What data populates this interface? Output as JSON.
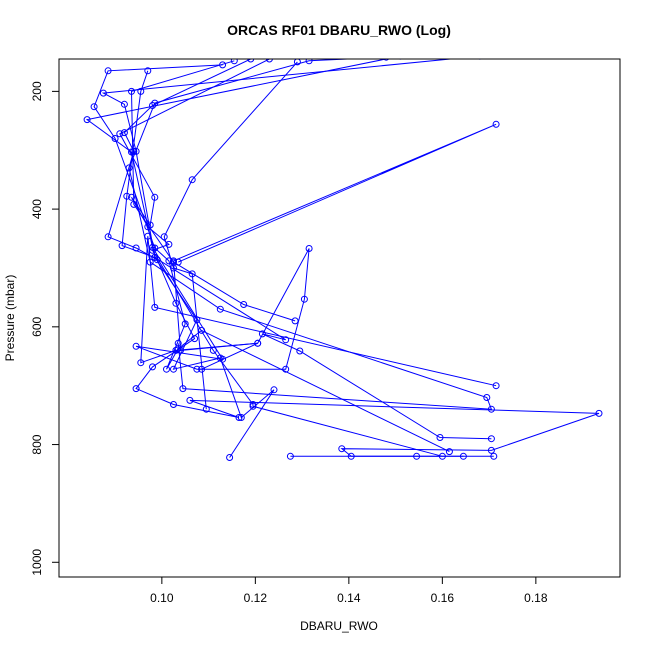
{
  "chart_data": {
    "type": "line",
    "title": "ORCAS RF01 DBARU_RWO (Log)",
    "xlabel": "DBARU_RWO",
    "ylabel": "Pressure (mbar)",
    "xlim": [
      0.078,
      0.198
    ],
    "ylim": [
      1025,
      145
    ],
    "y_reversed": true,
    "grid": false,
    "legend": "none",
    "line_color": "#0000ff",
    "marker": "open-circle",
    "x_ticks": [
      0.1,
      0.12,
      0.14,
      0.16,
      0.18
    ],
    "x_tick_labels": [
      "0.10",
      "0.12",
      "0.14",
      "0.16",
      "0.18"
    ],
    "y_ticks": [
      200,
      400,
      600,
      800,
      1000
    ],
    "y_tick_labels": [
      "200",
      "400",
      "600",
      "800",
      "1000"
    ],
    "series": [
      {
        "x": [
          0.119,
          0.098,
          0.092,
          0.094,
          0.0885,
          0.0945,
          0.099,
          0.103,
          0.107,
          0.098,
          0.0945,
          0.1025,
          0.1165,
          0.106,
          0.1935,
          0.1705,
          0.1385,
          0.1405,
          0.1645
        ],
        "y": [
          145,
          224,
          270,
          302,
          447,
          466,
          486,
          560,
          620,
          668,
          705,
          732,
          754,
          725,
          747,
          810,
          807,
          820,
          820
        ]
      },
      {
        "x": [
          0.113,
          0.0885,
          0.0855,
          0.09,
          0.0985,
          0.1015,
          0.105,
          0.101,
          0.1035,
          0.1085,
          0.1615
        ],
        "y": [
          155,
          165,
          226,
          280,
          466,
          488,
          595,
          672,
          637,
          606,
          812
        ]
      },
      {
        "x": [
          0.168,
          0.0875,
          0.092,
          0.0945,
          0.0985,
          0.1075,
          0.1025,
          0.1125,
          0.117,
          0.124,
          0.1145
        ],
        "y": [
          140,
          203,
          222,
          302,
          482,
          588,
          672,
          653,
          754,
          707,
          822
        ]
      },
      {
        "x": [
          0.151,
          0.084,
          0.0935,
          0.098,
          0.113,
          0.0945,
          0.1075,
          0.1265,
          0.1305,
          0.1315,
          0.1205,
          0.103,
          0.0955,
          0.097,
          0.0985,
          0.1715
        ],
        "y": [
          140,
          248,
          303,
          465,
          655,
          633,
          672,
          672,
          553,
          467,
          628,
          640,
          661,
          446,
          567,
          700
        ]
      },
      {
        "x": [
          0.123,
          0.091,
          0.0985,
          0.0975,
          0.0935,
          0.097,
          0.1015,
          0.098,
          0.111,
          0.1195,
          0.1195,
          0.16,
          0.171,
          0.1545,
          0.1275
        ],
        "y": [
          145,
          272,
          380,
          427,
          380,
          430,
          460,
          470,
          640,
          732,
          735,
          820,
          820,
          820,
          820
        ]
      },
      {
        "x": [
          0.097,
          0.0955,
          0.0925,
          0.0915,
          0.0985,
          0.1265,
          0.1215,
          0.1295,
          0.1595,
          0.1705
        ],
        "y": [
          165,
          200,
          378,
          462,
          482,
          622,
          612,
          641,
          788,
          790
        ]
      },
      {
        "x": [
          0.1155,
          0.0935,
          0.094,
          0.1025,
          0.1175,
          0.1285
        ],
        "y": [
          148,
          200,
          392,
          490,
          562,
          590
        ]
      },
      {
        "x": [
          0.148,
          0.1315,
          0.0985,
          0.093,
          0.0975,
          0.1125,
          0.1695,
          0.1705,
          0.1045,
          0.1035
        ],
        "y": [
          142,
          148,
          220,
          330,
          490,
          570,
          720,
          740,
          705,
          628
        ]
      },
      {
        "x": [
          0.129,
          0.1065,
          0.1005,
          0.1025,
          0.1065,
          0.1095
        ],
        "y": [
          150,
          350,
          447,
          500,
          510,
          740
        ]
      },
      {
        "x": [
          0.1035,
          0.1715,
          0.1025,
          0.104,
          0.1205,
          0.1085
        ],
        "y": [
          490,
          256,
          488,
          640,
          628,
          672
        ]
      }
    ]
  }
}
